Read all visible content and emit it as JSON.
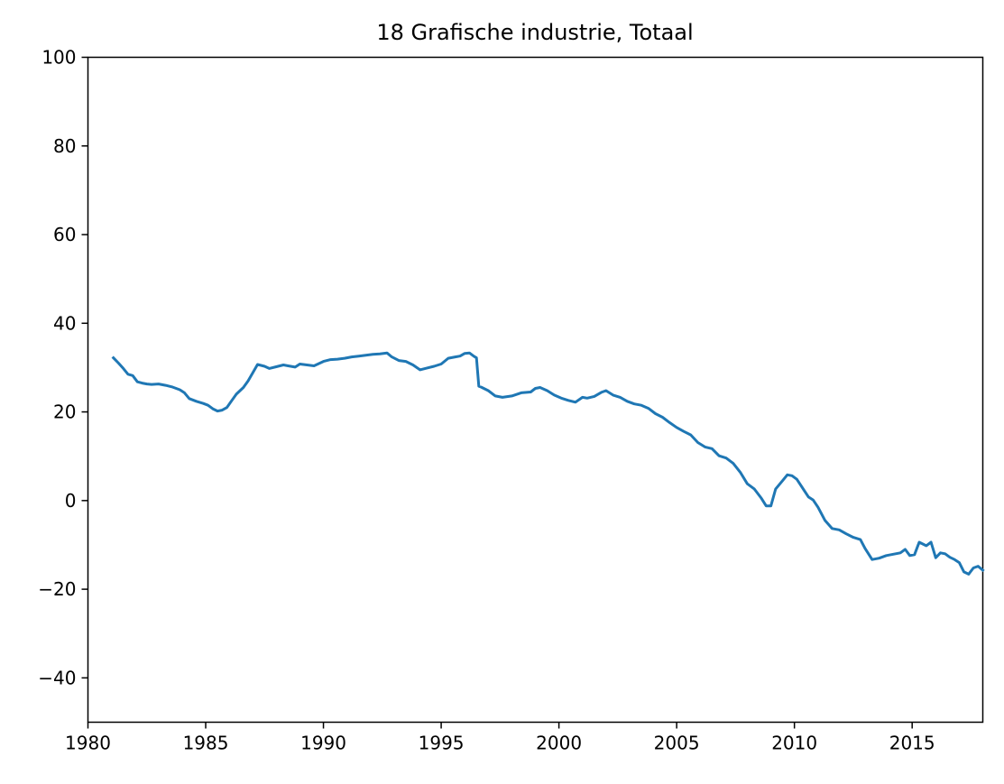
{
  "chart_data": {
    "type": "line",
    "title": "18 Grafische industrie, Totaal",
    "xlabel": "",
    "ylabel": "",
    "xlim": [
      1980,
      2018
    ],
    "ylim": [
      -50,
      100
    ],
    "grid": false,
    "x_ticks": [
      "1980",
      "1985",
      "1990",
      "1995",
      "2000",
      "2005",
      "2010",
      "2015"
    ],
    "y_ticks": [
      "100",
      "80",
      "60",
      "40",
      "20",
      "0",
      "−20",
      "−40"
    ],
    "colors": {
      "line": "#1f77b4",
      "axes": "#000000",
      "background": "#ffffff"
    },
    "series": [
      {
        "x": [
          1981.08,
          1981.3,
          1981.5,
          1981.7,
          1981.9,
          1982.1,
          1982.3,
          1982.5,
          1982.7,
          1983.0,
          1983.3,
          1983.6,
          1983.9,
          1984.1,
          1984.3,
          1984.6,
          1984.9,
          1985.1,
          1985.3,
          1985.5,
          1985.7,
          1985.9,
          1986.1,
          1986.3,
          1986.6,
          1986.8,
          1987.0,
          1987.2,
          1987.5,
          1987.7,
          1988.0,
          1988.3,
          1988.5,
          1988.8,
          1989.0,
          1989.3,
          1989.6,
          1990.0,
          1990.3,
          1990.6,
          1990.9,
          1991.2,
          1991.5,
          1991.8,
          1992.1,
          1992.4,
          1992.7,
          1992.9,
          1993.2,
          1993.5,
          1993.8,
          1994.1,
          1994.4,
          1994.7,
          1995.0,
          1995.3,
          1995.6,
          1995.8,
          1996.0,
          1996.2,
          1996.4,
          1996.5,
          1996.6,
          1996.7,
          1997.0,
          1997.3,
          1997.6,
          1998.0,
          1998.4,
          1998.8,
          1999.0,
          1999.2,
          1999.5,
          1999.8,
          2000.1,
          2000.4,
          2000.7,
          2001.0,
          2001.2,
          2001.5,
          2001.8,
          2002.0,
          2002.3,
          2002.6,
          2002.9,
          2003.2,
          2003.5,
          2003.8,
          2004.1,
          2004.4,
          2004.7,
          2005.0,
          2005.3,
          2005.6,
          2005.9,
          2006.2,
          2006.5,
          2006.8,
          2007.1,
          2007.4,
          2007.7,
          2008.0,
          2008.3,
          2008.6,
          2008.8,
          2009.0,
          2009.2,
          2009.5,
          2009.7,
          2009.9,
          2010.1,
          2010.3,
          2010.6,
          2010.8,
          2011.0,
          2011.3,
          2011.6,
          2011.9,
          2012.2,
          2012.5,
          2012.8,
          2013.0,
          2013.3,
          2013.6,
          2013.9,
          2014.2,
          2014.5,
          2014.7,
          2014.9,
          2015.1,
          2015.3,
          2015.6,
          2015.8,
          2016.0,
          2016.2,
          2016.4,
          2016.6,
          2016.8,
          2017.0,
          2017.2,
          2017.4,
          2017.6,
          2017.8,
          2018.0
        ],
        "y": [
          32.2,
          31.0,
          29.8,
          28.5,
          28.2,
          26.8,
          26.5,
          26.3,
          26.2,
          26.3,
          26.0,
          25.6,
          25.0,
          24.3,
          23.0,
          22.4,
          21.9,
          21.5,
          20.7,
          20.2,
          20.4,
          21.0,
          22.5,
          24.0,
          25.5,
          27.0,
          28.8,
          30.7,
          30.3,
          29.8,
          30.2,
          30.6,
          30.4,
          30.1,
          30.8,
          30.6,
          30.4,
          31.4,
          31.8,
          31.9,
          32.1,
          32.4,
          32.6,
          32.8,
          33.0,
          33.1,
          33.3,
          32.4,
          31.6,
          31.4,
          30.6,
          29.5,
          29.9,
          30.3,
          30.8,
          32.1,
          32.4,
          32.6,
          33.2,
          33.3,
          32.5,
          32.2,
          25.8,
          25.6,
          24.8,
          23.6,
          23.3,
          23.6,
          24.3,
          24.5,
          25.3,
          25.5,
          24.8,
          23.8,
          23.1,
          22.6,
          22.2,
          23.3,
          23.1,
          23.5,
          24.4,
          24.8,
          23.8,
          23.3,
          22.4,
          21.8,
          21.5,
          20.8,
          19.6,
          18.8,
          17.6,
          16.5,
          15.6,
          14.8,
          13.1,
          12.1,
          11.7,
          10.1,
          9.6,
          8.4,
          6.4,
          3.8,
          2.6,
          0.5,
          -1.2,
          -1.2,
          2.6,
          4.5,
          5.8,
          5.6,
          4.8,
          3.2,
          0.8,
          0.1,
          -1.5,
          -4.5,
          -6.3,
          -6.6,
          -7.5,
          -8.3,
          -8.8,
          -10.8,
          -13.3,
          -13.0,
          -12.4,
          -12.1,
          -11.8,
          -11.0,
          -12.4,
          -12.2,
          -9.4,
          -10.2,
          -9.4,
          -12.9,
          -11.8,
          -12.0,
          -12.8,
          -13.3,
          -14.0,
          -16.1,
          -16.6,
          -15.2,
          -14.8,
          -15.7
        ]
      }
    ]
  }
}
